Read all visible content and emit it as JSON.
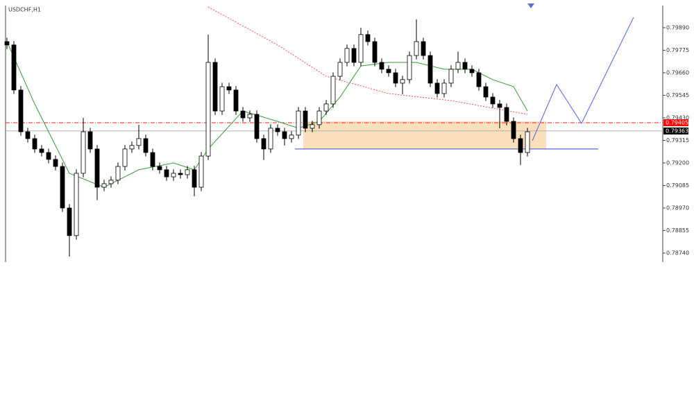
{
  "chart_data": {
    "type": "candlestick",
    "title": "USDCHF,H1",
    "xlim": [
      -0.2,
      94.5
    ],
    "ylim": [
      0.78694,
      0.80003
    ],
    "yticks": [
      {
        "value": 0.7989,
        "label": "0.79890"
      },
      0.79775,
      {
        "value": 0.7966,
        "label": "0.79660"
      },
      0.79545,
      {
        "value": 0.7943,
        "label": "0.79430"
      },
      0.79315,
      {
        "value": 0.792,
        "label": "0.79200"
      },
      0.79085,
      {
        "value": 0.7897,
        "label": "0.78970"
      },
      0.78855,
      {
        "value": 0.7874,
        "label": "0.78740"
      }
    ],
    "open": [
      0.79819,
      0.79802,
      0.79572,
      0.79359,
      0.79324,
      0.79271,
      0.79253,
      0.79218,
      0.79182,
      0.7897,
      0.78829,
      0.79147,
      0.79359,
      0.79271,
      0.79076,
      0.79094,
      0.79112,
      0.79182,
      0.79271,
      0.79289,
      0.79324,
      0.79253,
      0.79182,
      0.79165,
      0.79129,
      0.79147,
      0.7914,
      0.79165,
      0.79076,
      0.79235,
      0.79713,
      0.79465,
      0.79589,
      0.79572,
      0.79465,
      0.7943,
      0.79448,
      0.79324,
      0.79271,
      0.79377,
      0.79359,
      0.79324,
      0.79342,
      0.79465,
      0.79377,
      0.79395,
      0.79465,
      0.79501,
      0.79642,
      0.79713,
      0.79784,
      0.79713,
      0.79855,
      0.79819,
      0.79713,
      0.79678,
      0.7966,
      0.79607,
      0.79625,
      0.79748,
      0.79819,
      0.79748,
      0.79607,
      0.79554,
      0.79607,
      0.79678,
      0.79713,
      0.79678,
      0.7966,
      0.79589,
      0.79536,
      0.79501,
      0.79483,
      0.79412,
      0.79324,
      0.79253
    ],
    "high": [
      0.79839,
      0.79822,
      0.79592,
      0.79379,
      0.79344,
      0.79291,
      0.79273,
      0.79238,
      0.79202,
      0.7899,
      0.79167,
      0.7943,
      0.79379,
      0.79291,
      0.79114,
      0.79132,
      0.79202,
      0.79291,
      0.79309,
      0.79395,
      0.79344,
      0.79273,
      0.79202,
      0.79185,
      0.79167,
      0.79167,
      0.79185,
      0.79185,
      0.79255,
      0.79855,
      0.79733,
      0.79609,
      0.79609,
      0.79592,
      0.79485,
      0.79468,
      0.79468,
      0.79344,
      0.79397,
      0.79397,
      0.79379,
      0.79362,
      0.79485,
      0.79485,
      0.79415,
      0.79485,
      0.79521,
      0.79662,
      0.79733,
      0.79804,
      0.79804,
      0.7989,
      0.79875,
      0.79839,
      0.79733,
      0.79698,
      0.7968,
      0.79645,
      0.79768,
      0.79932,
      0.79839,
      0.79768,
      0.79627,
      0.79627,
      0.79698,
      0.79768,
      0.79733,
      0.79698,
      0.7968,
      0.79609,
      0.79556,
      0.79521,
      0.79503,
      0.79432,
      0.79344,
      0.79379
    ],
    "low": [
      0.79782,
      0.79552,
      0.79339,
      0.79304,
      0.79251,
      0.79233,
      0.79198,
      0.79162,
      0.7895,
      0.78722,
      0.78809,
      0.79127,
      0.79251,
      0.7901,
      0.79056,
      0.79074,
      0.79092,
      0.79162,
      0.79251,
      0.79269,
      0.79233,
      0.79162,
      0.79145,
      0.79109,
      0.79109,
      0.7912,
      0.7912,
      0.7903,
      0.79056,
      0.79215,
      0.79445,
      0.79445,
      0.79552,
      0.79445,
      0.7941,
      0.7941,
      0.79304,
      0.79215,
      0.79251,
      0.79339,
      0.79289,
      0.79304,
      0.79322,
      0.79357,
      0.79357,
      0.79375,
      0.79445,
      0.79481,
      0.79622,
      0.79693,
      0.79693,
      0.79693,
      0.79799,
      0.79693,
      0.79658,
      0.7964,
      0.79587,
      0.7955,
      0.79605,
      0.79728,
      0.79728,
      0.79587,
      0.79534,
      0.79534,
      0.79587,
      0.79658,
      0.79658,
      0.7964,
      0.79569,
      0.79516,
      0.79481,
      0.79377,
      0.79392,
      0.79304,
      0.79189,
      0.79233
    ],
    "close": [
      0.79802,
      0.79572,
      0.79359,
      0.79324,
      0.79271,
      0.79253,
      0.79218,
      0.79182,
      0.7897,
      0.78829,
      0.79147,
      0.79359,
      0.79271,
      0.79076,
      0.79094,
      0.79112,
      0.79182,
      0.79271,
      0.79289,
      0.79324,
      0.79253,
      0.79182,
      0.79165,
      0.79129,
      0.79147,
      0.7914,
      0.79165,
      0.79076,
      0.79235,
      0.79713,
      0.79465,
      0.79589,
      0.79572,
      0.79465,
      0.7943,
      0.79448,
      0.79324,
      0.79271,
      0.79377,
      0.79359,
      0.79324,
      0.79342,
      0.79465,
      0.79377,
      0.79395,
      0.79465,
      0.79501,
      0.79642,
      0.79713,
      0.79784,
      0.79713,
      0.79855,
      0.79819,
      0.79713,
      0.79678,
      0.7966,
      0.79607,
      0.79625,
      0.79748,
      0.79819,
      0.79748,
      0.79607,
      0.79554,
      0.79607,
      0.79678,
      0.79713,
      0.79678,
      0.7966,
      0.79589,
      0.79536,
      0.79501,
      0.79483,
      0.79412,
      0.79324,
      0.79253,
      0.79359
    ],
    "up_color": "#ffffff",
    "down_color": "#000000",
    "moving_averages": [
      {
        "color": "#3a9a3a",
        "dashed": false,
        "x": [
          0,
          4,
          9,
          14,
          19,
          24,
          27,
          29,
          34,
          39,
          42,
          45,
          48,
          51,
          55,
          59,
          63,
          67,
          70,
          73,
          75
        ],
        "values": [
          0.79819,
          0.79501,
          0.79147,
          0.79076,
          0.79165,
          0.792,
          0.79165,
          0.79271,
          0.79465,
          0.79412,
          0.79377,
          0.79412,
          0.79536,
          0.79695,
          0.79713,
          0.79713,
          0.79678,
          0.79678,
          0.79625,
          0.79589,
          0.79465
        ]
      },
      {
        "color": "#ff4b4b",
        "dashed": true,
        "x": [
          29,
          39,
          46,
          55,
          64,
          75
        ],
        "values": [
          0.79996,
          0.79802,
          0.79642,
          0.79554,
          0.79518,
          0.79448
        ]
      }
    ],
    "levels": [
      {
        "value": 0.79405,
        "color": "#ff2020",
        "label_bg": "#ff0000",
        "dashed": true
      },
      {
        "value": 0.79363,
        "color": "#b0b0b0",
        "label_bg": "#000000",
        "dashed": false
      }
    ],
    "zone": {
      "x": [
        42.7,
        77.7
      ],
      "y": [
        0.79271,
        0.79412
      ],
      "color": "#fcd9b0"
    },
    "support": {
      "x": [
        41.5,
        85.2
      ],
      "value": 0.79271,
      "color": "#5b6fd6"
    },
    "projection": {
      "color": "#6b78e0",
      "x": [
        75.7,
        79.2,
        82.8,
        90.3
      ],
      "values": [
        0.79313,
        0.796,
        0.79402,
        0.79943
      ]
    }
  }
}
